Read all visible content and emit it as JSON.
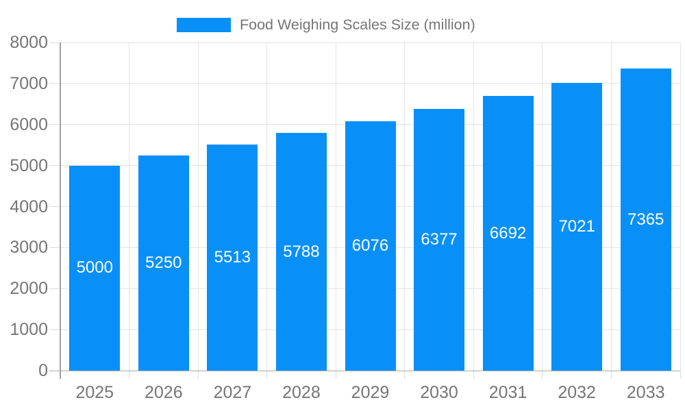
{
  "chart_data": {
    "type": "bar",
    "title": "Food Weighing Scales Size (million)",
    "legend_position": "top",
    "categories": [
      "2025",
      "2026",
      "2027",
      "2028",
      "2029",
      "2030",
      "2031",
      "2032",
      "2033"
    ],
    "values": [
      5000,
      5250,
      5513,
      5788,
      6076,
      6377,
      6692,
      7021,
      7365
    ],
    "ylim": [
      0,
      8000
    ],
    "yticks": [
      0,
      1000,
      2000,
      3000,
      4000,
      5000,
      6000,
      7000,
      8000
    ],
    "grid": true,
    "colors": {
      "bar": "#0890f8",
      "bar_label": "#ffffff",
      "axis_text": "#757575"
    }
  }
}
